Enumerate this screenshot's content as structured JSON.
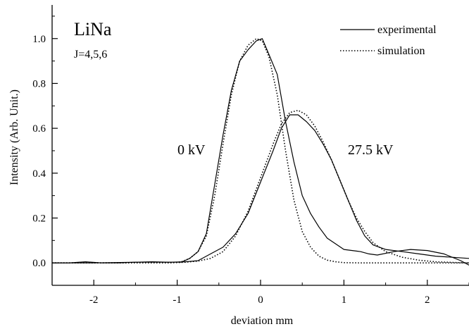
{
  "chart_data": {
    "type": "line",
    "xlabel": "deviation mm",
    "ylabel": "Intensity (Arb. Unit.)",
    "xlim": [
      -2.5,
      2.5
    ],
    "ylim": [
      -0.1,
      1.15
    ],
    "x_ticks": [
      -2,
      -1,
      0,
      1,
      2
    ],
    "x_tick_labels": [
      "-2",
      "-1",
      "0",
      "1",
      "2"
    ],
    "y_ticks": [
      0.0,
      0.2,
      0.4,
      0.6,
      0.8,
      1.0
    ],
    "y_tick_labels": [
      "0.0",
      "0.2",
      "0.4",
      "0.6",
      "0.8",
      "1.0"
    ],
    "grid": false,
    "legend_position": "top-right",
    "legend": [
      {
        "label": "experimental",
        "style": "solid"
      },
      {
        "label": "simulation",
        "style": "dotted"
      }
    ],
    "annotations": {
      "molecule": "LiNa",
      "levels": "J=4,5,6",
      "label_0kv": "0 kV",
      "label_275kv": "27.5 kV"
    },
    "series": [
      {
        "name": "experimental",
        "style": "solid",
        "x": [
          -2.5,
          -2.3,
          -2.1,
          -1.9,
          -1.7,
          -1.5,
          -1.3,
          -1.1,
          -0.95,
          -0.85,
          -0.75,
          -0.65,
          -0.55,
          -0.45,
          -0.35,
          -0.25,
          -0.15,
          -0.05,
          0.02,
          0.1,
          0.2,
          0.3,
          0.4,
          0.5,
          0.6,
          0.7,
          0.8,
          0.9,
          1.0,
          1.1,
          1.2,
          1.3,
          1.4,
          1.6,
          1.8,
          2.0,
          2.2,
          2.4,
          2.5
        ],
        "y": [
          0.0,
          0.0,
          0.005,
          0.0,
          0.0,
          0.003,
          0.005,
          0.003,
          0.003,
          0.02,
          0.05,
          0.13,
          0.35,
          0.57,
          0.77,
          0.9,
          0.95,
          0.99,
          1.0,
          0.93,
          0.84,
          0.63,
          0.45,
          0.3,
          0.22,
          0.16,
          0.11,
          0.085,
          0.06,
          0.055,
          0.05,
          0.04,
          0.035,
          0.05,
          0.06,
          0.055,
          0.04,
          0.01,
          -0.01
        ]
      },
      {
        "name": "simulation",
        "style": "dotted",
        "x": [
          -2.5,
          -1.5,
          -1.1,
          -0.95,
          -0.85,
          -0.75,
          -0.65,
          -0.55,
          -0.45,
          -0.35,
          -0.25,
          -0.15,
          -0.05,
          0.02,
          0.1,
          0.2,
          0.3,
          0.4,
          0.5,
          0.6,
          0.7,
          0.8,
          0.9,
          1.0,
          1.2,
          1.5,
          2.5
        ],
        "y": [
          0.0,
          0.0,
          0.0,
          0.005,
          0.02,
          0.05,
          0.12,
          0.3,
          0.53,
          0.75,
          0.9,
          0.97,
          1.0,
          0.99,
          0.92,
          0.75,
          0.5,
          0.28,
          0.14,
          0.07,
          0.03,
          0.012,
          0.005,
          0.001,
          0.0,
          0.0,
          0.0
        ]
      },
      {
        "name": "experimental",
        "style": "solid",
        "x": [
          -2.5,
          -2.0,
          -1.5,
          -1.1,
          -0.9,
          -0.75,
          -0.6,
          -0.45,
          -0.3,
          -0.15,
          0.0,
          0.15,
          0.25,
          0.35,
          0.45,
          0.55,
          0.65,
          0.75,
          0.85,
          0.95,
          1.05,
          1.15,
          1.25,
          1.35,
          1.5,
          1.7,
          1.9,
          2.1,
          2.3,
          2.5
        ],
        "y": [
          0.0,
          0.0,
          0.003,
          0.003,
          0.005,
          0.01,
          0.04,
          0.07,
          0.13,
          0.22,
          0.36,
          0.5,
          0.6,
          0.66,
          0.66,
          0.63,
          0.59,
          0.53,
          0.46,
          0.37,
          0.28,
          0.19,
          0.12,
          0.08,
          0.06,
          0.05,
          0.04,
          0.03,
          0.025,
          0.02
        ]
      },
      {
        "name": "simulation",
        "style": "dotted",
        "x": [
          -2.5,
          -1.5,
          -1.1,
          -0.9,
          -0.75,
          -0.6,
          -0.45,
          -0.3,
          -0.15,
          0.0,
          0.15,
          0.25,
          0.35,
          0.45,
          0.55,
          0.65,
          0.75,
          0.85,
          0.95,
          1.05,
          1.15,
          1.25,
          1.35,
          1.5,
          1.7,
          1.9,
          2.1,
          2.3,
          2.5
        ],
        "y": [
          0.0,
          0.0,
          0.0,
          0.003,
          0.008,
          0.02,
          0.05,
          0.12,
          0.23,
          0.38,
          0.53,
          0.62,
          0.67,
          0.68,
          0.66,
          0.61,
          0.54,
          0.46,
          0.37,
          0.28,
          0.2,
          0.14,
          0.09,
          0.05,
          0.025,
          0.012,
          0.005,
          0.002,
          0.0
        ]
      }
    ]
  }
}
